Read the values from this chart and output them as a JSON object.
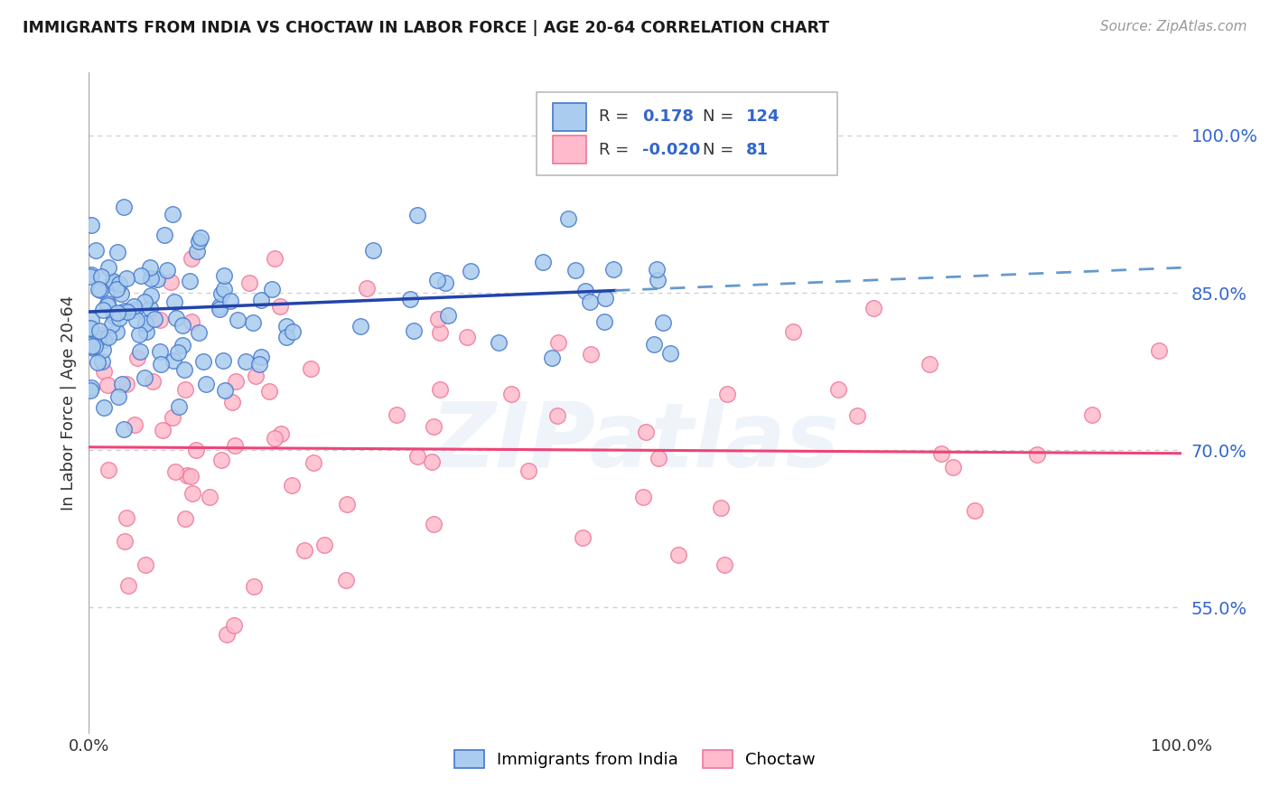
{
  "title": "IMMIGRANTS FROM INDIA VS CHOCTAW IN LABOR FORCE | AGE 20-64 CORRELATION CHART",
  "source": "Source: ZipAtlas.com",
  "ylabel": "In Labor Force | Age 20-64",
  "y_tick_values": [
    0.55,
    0.7,
    0.85,
    1.0
  ],
  "xlim": [
    0.0,
    1.0
  ],
  "ylim": [
    0.43,
    1.06
  ],
  "watermark": "ZIPatlas",
  "background_color": "#ffffff",
  "grid_color": "#cccccc",
  "blue_edge_color": "#4477cc",
  "pink_edge_color": "#ee7799",
  "trend_blue_solid_color": "#2244aa",
  "trend_blue_dash_color": "#6699cc",
  "trend_pink_color": "#ee4477",
  "blue_scatter_fill": "#aaccee",
  "pink_scatter_fill": "#ffbbcc",
  "blue_R": 0.178,
  "blue_N": 124,
  "pink_R": -0.02,
  "pink_N": 81,
  "blue_intercept": 0.832,
  "blue_slope": 0.042,
  "pink_intercept": 0.703,
  "pink_slope": -0.006,
  "blue_trend_split": 0.48,
  "label_color": "#3366cc"
}
